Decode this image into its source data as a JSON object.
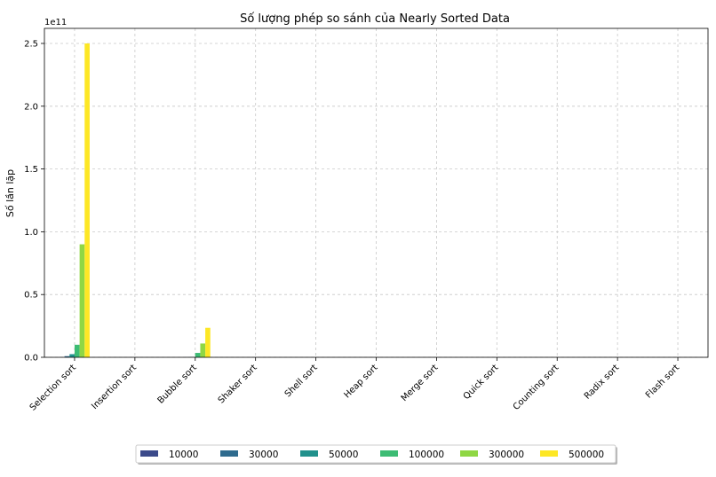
{
  "chart_data": {
    "type": "bar",
    "title": "Số lượng phép so sánh của Nearly Sorted Data",
    "xlabel": "",
    "ylabel": "Số lần lặp",
    "y_scale_label": "1e11",
    "ylim": [
      0,
      262000000000
    ],
    "yticks": [
      0,
      50000000000,
      100000000000,
      150000000000,
      200000000000,
      250000000000
    ],
    "ytick_labels": [
      "0.0",
      "0.5",
      "1.0",
      "1.5",
      "2.0",
      "2.5"
    ],
    "grid": true,
    "legend_position": "bottom",
    "categories": [
      "Selection sort",
      "Insertion sort",
      "Bubble sort",
      "Shaker sort",
      "Shell sort",
      "Heap sort",
      "Merge sort",
      "Quick sort",
      "Counting sort",
      "Radix sort",
      "Flash sort"
    ],
    "series": [
      {
        "name": "10000",
        "color": "#3b4a8a",
        "values": [
          100000000,
          0,
          0,
          0,
          0,
          0,
          0,
          0,
          0,
          0,
          0
        ]
      },
      {
        "name": "30000",
        "color": "#2f6b8e",
        "values": [
          900000000,
          0,
          100000000,
          0,
          0,
          0,
          0,
          0,
          0,
          0,
          0
        ]
      },
      {
        "name": "50000",
        "color": "#21918c",
        "values": [
          2500000000,
          0,
          300000000,
          0,
          0,
          0,
          0,
          0,
          0,
          0,
          0
        ]
      },
      {
        "name": "100000",
        "color": "#3dbc74",
        "values": [
          10000000000,
          0,
          3500000000,
          0,
          0,
          0,
          0,
          0,
          0,
          0,
          0
        ]
      },
      {
        "name": "300000",
        "color": "#8fd744",
        "values": [
          90000000000,
          0,
          11000000000,
          0,
          0,
          0,
          0,
          0,
          0,
          0,
          0
        ]
      },
      {
        "name": "500000",
        "color": "#fde725",
        "values": [
          250000000000,
          0,
          23500000000,
          0,
          0,
          0,
          0,
          0,
          0,
          0,
          0
        ]
      }
    ]
  }
}
